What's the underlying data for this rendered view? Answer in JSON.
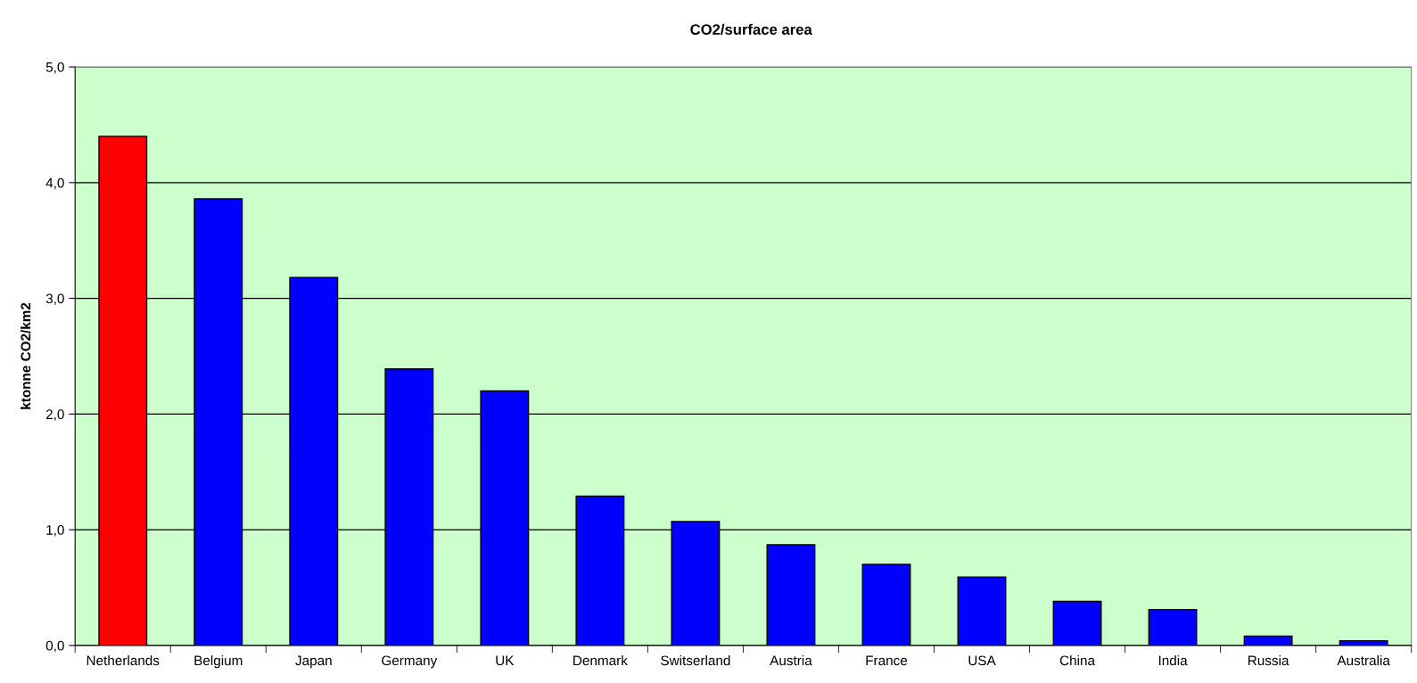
{
  "chart_data": {
    "type": "bar",
    "title": "CO2/surface area",
    "ylabel": "ktonne CO2/km2",
    "categories": [
      "Netherlands",
      "Belgium",
      "Japan",
      "Germany",
      "UK",
      "Denmark",
      "Switserland",
      "Austria",
      "France",
      "USA",
      "China",
      "India",
      "Russia",
      "Australia"
    ],
    "values": [
      4.4,
      3.86,
      3.18,
      2.39,
      2.2,
      1.29,
      1.07,
      0.87,
      0.7,
      0.59,
      0.38,
      0.31,
      0.08,
      0.04
    ],
    "colors": [
      "#ff0000",
      "#0000ff",
      "#0000ff",
      "#0000ff",
      "#0000ff",
      "#0000ff",
      "#0000ff",
      "#0000ff",
      "#0000ff",
      "#0000ff",
      "#0000ff",
      "#0000ff",
      "#0000ff",
      "#0000ff"
    ],
    "ylim": [
      0,
      5
    ],
    "yticks": [
      {
        "value": 0,
        "label": "0,0"
      },
      {
        "value": 1,
        "label": "1,0"
      },
      {
        "value": 2,
        "label": "2,0"
      },
      {
        "value": 3,
        "label": "3,0"
      },
      {
        "value": 4,
        "label": "4,0"
      },
      {
        "value": 5,
        "label": "5,0"
      }
    ],
    "grid": "y",
    "legend": false
  }
}
